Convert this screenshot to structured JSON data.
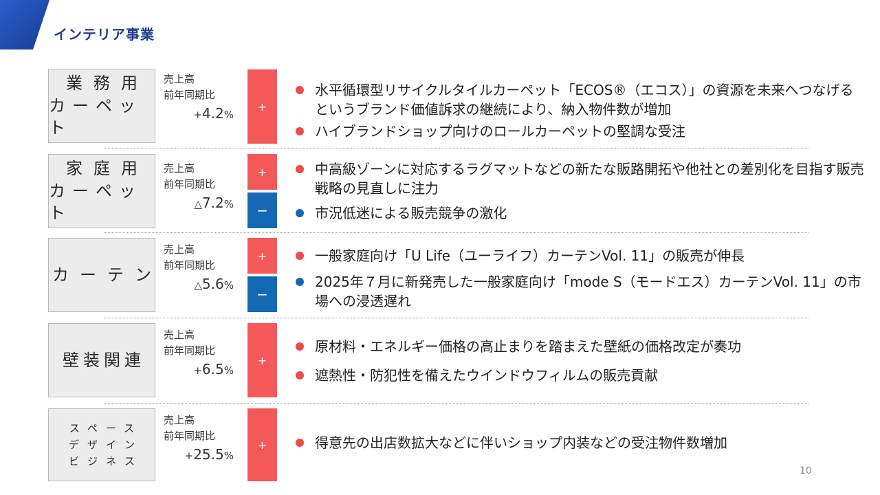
{
  "page_title": "インテリア事業",
  "page_number": "10",
  "colors": {
    "title": "#1e3f8f",
    "plus_bar": "#f55858",
    "minus_bar": "#1469b4",
    "red_dot": "#ee4b4b",
    "blue_dot": "#1469b4"
  },
  "metric_label_1": "売上高",
  "metric_label_2": "前年同期比",
  "plus_symbol": "+",
  "minus_symbol": "−",
  "pct_unit": "%",
  "rows": [
    {
      "category_line1": "業務用",
      "category_line2": "カーペット",
      "sign": "+",
      "value": "4.2",
      "bullets": [
        "水平循環型リサイクルタイルカーペット「ECOS®（エコス）」の資源を未来へつなげるというブランド価値訴求の継続により、納入物件数が増加",
        "ハイブランドショップ向けのロールカーペットの堅調な受注"
      ]
    },
    {
      "category_line1": "家庭用",
      "category_line2": "カーペット",
      "sign": "△",
      "value": "7.2",
      "bullets": [
        "中高級ゾーンに対応するラグマットなどの新たな販路開拓や他社との差別化を目指す販売戦略の見直しに注力",
        "市況低迷による販売競争の激化"
      ]
    },
    {
      "category_line1": "カーテン",
      "sign": "△",
      "value": "5.6",
      "bullets": [
        "一般家庭向け「U Life（ユーライフ）カーテンVol. 11」の販売が伸長",
        "2025年７月に新発売した一般家庭向け「mode S（モードエス）カーテンVol. 11」の市場への浸透遅れ"
      ]
    },
    {
      "category_line1": "壁装関連",
      "sign": "+",
      "value": "6.5",
      "bullets": [
        "原材料・エネルギー価格の高止まりを踏まえた壁紙の価格改定が奏功",
        "遮熱性・防犯性を備えたウインドウフィルムの販売貢献"
      ]
    },
    {
      "category_line1": "スペース",
      "category_line2": "デザイン",
      "category_line3": "ビジネス",
      "sign": "+",
      "value": "25.5",
      "bullets": [
        "得意先の出店数拡大などに伴いショップ内装などの受注物件数増加"
      ]
    }
  ]
}
